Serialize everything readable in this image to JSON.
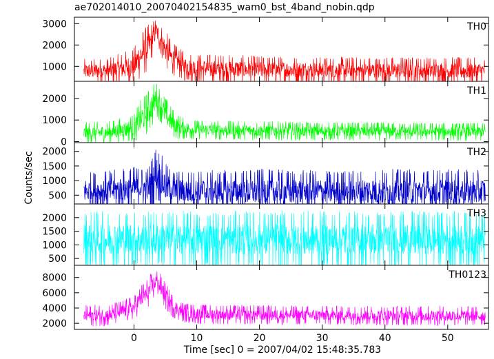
{
  "chart_data": {
    "type": "line",
    "title": "ae702014010_20070402154835_wam0_bst_4band_nobin.qdp",
    "xlabel": "Time [sec] 0 = 2007/04/02 15:48:35.783",
    "ylabel": "Counts/sec",
    "xlim": [
      -9.5,
      56.5
    ],
    "xticks": [
      0,
      10,
      20,
      30,
      40,
      50
    ],
    "xtick_labels": [
      "0",
      "10",
      "20",
      "30",
      "40",
      "50"
    ],
    "panels": [
      {
        "name": "TH0",
        "color": "#ff0000",
        "ylim": [
          300,
          3300
        ],
        "yticks": [
          1000,
          2000,
          3000
        ],
        "ytick_labels": [
          "1000",
          "2000",
          "3000"
        ],
        "envelope": {
          "x": [
            -8,
            -4,
            0,
            1,
            2,
            3,
            3.5,
            4,
            5,
            6,
            7,
            8,
            10,
            20,
            30,
            40,
            50,
            56
          ],
          "mean": [
            780,
            800,
            1000,
            1500,
            1800,
            2300,
            2700,
            2400,
            1800,
            1400,
            1200,
            1000,
            900,
            850,
            820,
            800,
            800,
            790
          ],
          "max": [
            1350,
            1400,
            1900,
            2600,
            2900,
            3150,
            3300,
            3100,
            2700,
            2200,
            1900,
            1700,
            1600,
            1500,
            1450,
            1450,
            1450,
            1400
          ]
        }
      },
      {
        "name": "TH1",
        "color": "#00ff00",
        "ylim": [
          -50,
          2800
        ],
        "yticks": [
          0,
          1000,
          2000
        ],
        "ytick_labels": [
          "0",
          "1000",
          "2000"
        ],
        "envelope": {
          "x": [
            -8,
            -4,
            0,
            1,
            2,
            3,
            3.5,
            4,
            5,
            6,
            7,
            8,
            10,
            20,
            30,
            40,
            50,
            56
          ],
          "mean": [
            400,
            420,
            650,
            1000,
            1300,
            1700,
            2000,
            1800,
            1300,
            900,
            700,
            600,
            550,
            500,
            480,
            470,
            460,
            450
          ],
          "max": [
            900,
            950,
            1300,
            1900,
            2300,
            2700,
            2800,
            2600,
            2100,
            1600,
            1300,
            1100,
            1000,
            950,
            900,
            900,
            880,
            880
          ]
        }
      },
      {
        "name": "TH2",
        "color": "#0000cc",
        "ylim": [
          200,
          2300
        ],
        "yticks": [
          500,
          1000,
          1500,
          2000
        ],
        "ytick_labels": [
          "500",
          "1000",
          "1500",
          "2000"
        ],
        "envelope": {
          "x": [
            -8,
            -4,
            0,
            1,
            2,
            3,
            3.5,
            4,
            5,
            6,
            7,
            8,
            10,
            20,
            30,
            40,
            50,
            56
          ],
          "mean": [
            650,
            650,
            720,
            800,
            700,
            950,
            1250,
            1150,
            800,
            700,
            660,
            650,
            640,
            640,
            630,
            630,
            630,
            620
          ],
          "max": [
            1300,
            1350,
            1500,
            1500,
            1400,
            1900,
            2250,
            2100,
            1600,
            1400,
            1350,
            1350,
            1350,
            1400,
            1350,
            1400,
            1400,
            1350
          ]
        }
      },
      {
        "name": "TH3",
        "color": "#00ffff",
        "ylim": [
          250,
          2500
        ],
        "yticks": [
          500,
          1000,
          1500,
          2000
        ],
        "ytick_labels": [
          "500",
          "1000",
          "1500",
          "2000"
        ],
        "envelope": {
          "x": [
            -8,
            0,
            10,
            20,
            30,
            40,
            50,
            56
          ],
          "mean": [
            1200,
            1200,
            1200,
            1200,
            1200,
            1200,
            1200,
            1200
          ],
          "max": [
            2250,
            2250,
            2250,
            2250,
            2250,
            2250,
            2250,
            2250
          ]
        }
      },
      {
        "name": "TH0123",
        "color": "#ff00ff",
        "ylim": [
          1200,
          9600
        ],
        "yticks": [
          2000,
          4000,
          6000,
          8000
        ],
        "ytick_labels": [
          "2000",
          "4000",
          "6000",
          "8000"
        ],
        "envelope": {
          "x": [
            -8,
            -4,
            0,
            1,
            2,
            3,
            3.5,
            4,
            5,
            6,
            7,
            8,
            10,
            20,
            30,
            40,
            50,
            56
          ],
          "mean": [
            3000,
            3050,
            4000,
            5200,
            5800,
            6800,
            7600,
            7000,
            5600,
            4400,
            3800,
            3400,
            3200,
            3100,
            3050,
            3000,
            2980,
            2950
          ],
          "max": [
            4400,
            4500,
            5600,
            7000,
            7800,
            8800,
            9200,
            8800,
            7400,
            6000,
            5200,
            4700,
            4500,
            4400,
            4300,
            4300,
            4300,
            4200
          ]
        }
      }
    ]
  }
}
